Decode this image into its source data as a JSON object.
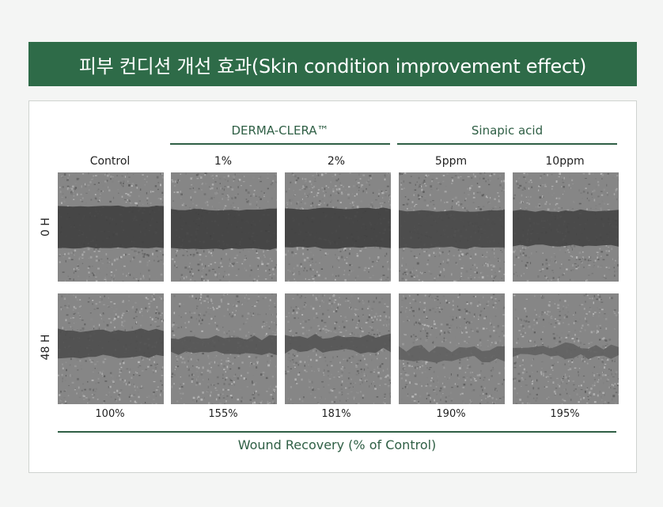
{
  "title": "피부 컨디션 개선 효과(Skin condition improvement effect)",
  "groups": [
    {
      "label": "DERMA-CLERA™"
    },
    {
      "label": "Sinapic acid"
    }
  ],
  "columns": [
    {
      "label": "Control",
      "recovery": "100%"
    },
    {
      "label": "1%",
      "recovery": "155%"
    },
    {
      "label": "2%",
      "recovery": "181%"
    },
    {
      "label": "5ppm",
      "recovery": "190%"
    },
    {
      "label": "10ppm",
      "recovery": "195%"
    }
  ],
  "rows": [
    {
      "label": "0 H"
    },
    {
      "label": "48 H"
    }
  ],
  "caption": "Wound Recovery (% of Control)",
  "colors": {
    "banner": "#2e6b48",
    "accent": "#2f5f45"
  },
  "chart_data": {
    "type": "bar",
    "categories": [
      "Control",
      "1%",
      "2%",
      "5ppm",
      "10ppm"
    ],
    "values": [
      100,
      155,
      181,
      190,
      195
    ],
    "title": "",
    "xlabel": "",
    "ylabel": "Wound Recovery (% of Control)"
  }
}
